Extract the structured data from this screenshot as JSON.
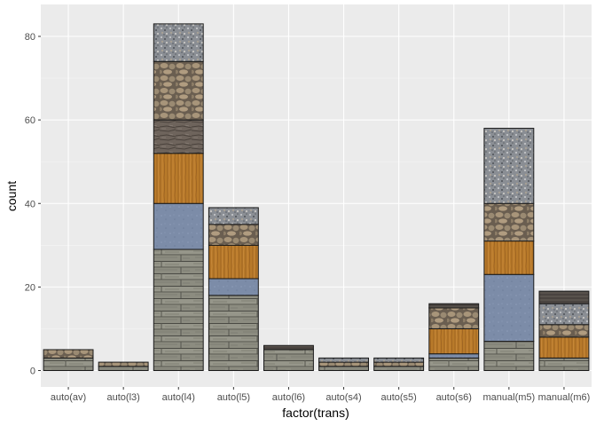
{
  "chart_data": {
    "type": "bar",
    "stacked": true,
    "xlabel": "factor(trans)",
    "ylabel": "count",
    "ylim": [
      0,
      83
    ],
    "yticks": [
      0,
      20,
      40,
      60,
      80
    ],
    "categories": [
      "auto(av)",
      "auto(l3)",
      "auto(l4)",
      "auto(l5)",
      "auto(l6)",
      "auto(s4)",
      "auto(s5)",
      "auto(s6)",
      "manual(m5)",
      "manual(m6)"
    ],
    "fill_series": [
      {
        "name": "wood-planks",
        "pattern": "wood"
      },
      {
        "name": "blue-metal",
        "pattern": "metal"
      },
      {
        "name": "orange-wood",
        "pattern": "orange"
      },
      {
        "name": "dark-rock",
        "pattern": "rock"
      },
      {
        "name": "cobblestone",
        "pattern": "cobble"
      },
      {
        "name": "gravel",
        "pattern": "gravel"
      },
      {
        "name": "dark-strip",
        "pattern": "dark"
      }
    ],
    "segments": [
      [
        3,
        0,
        0,
        0,
        2,
        0,
        0
      ],
      [
        1,
        0,
        0,
        0,
        1,
        0,
        0
      ],
      [
        29,
        11,
        12,
        8,
        14,
        9,
        0
      ],
      [
        18,
        4,
        8,
        0,
        5,
        4,
        0
      ],
      [
        5,
        0,
        0,
        0,
        0,
        0,
        1
      ],
      [
        1,
        0,
        0,
        0,
        1,
        1,
        0
      ],
      [
        1,
        0,
        0,
        0,
        1,
        1,
        0
      ],
      [
        3,
        1,
        6,
        0,
        5,
        0,
        1
      ],
      [
        7,
        16,
        8,
        0,
        9,
        18,
        0
      ],
      [
        3,
        0,
        5,
        0,
        3,
        5,
        3
      ]
    ],
    "totals": [
      5,
      2,
      83,
      39,
      6,
      3,
      3,
      16,
      58,
      19
    ]
  }
}
